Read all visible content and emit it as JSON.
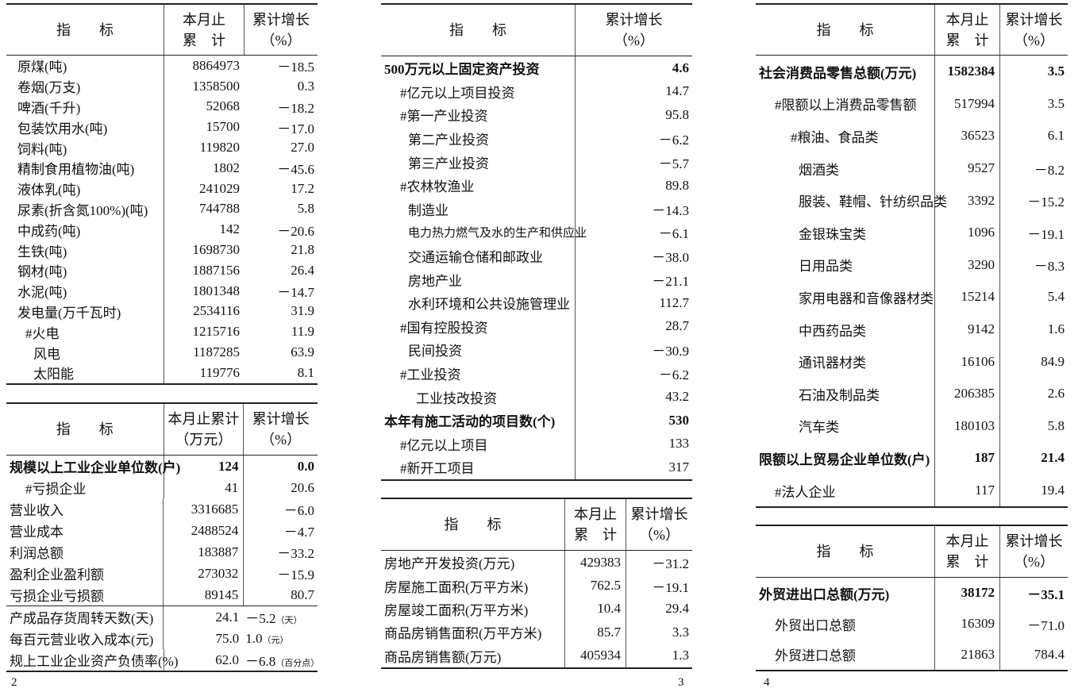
{
  "tables": [
    {
      "id": "industrial-output",
      "header": [
        "指　　标",
        "本月止\n累　计",
        "累计增长\n（%）"
      ],
      "rows": [
        {
          "label": "原煤(吨)",
          "indent": 1,
          "v1": "8864973",
          "v2": "－18.5"
        },
        {
          "label": "卷烟(万支)",
          "indent": 1,
          "v1": "1358500",
          "v2": "0.3"
        },
        {
          "label": "啤酒(千升)",
          "indent": 1,
          "v1": "52068",
          "v2": "－18.2"
        },
        {
          "label": "包装饮用水(吨)",
          "indent": 1,
          "v1": "15700",
          "v2": "－17.0"
        },
        {
          "label": "饲料(吨)",
          "indent": 1,
          "v1": "119820",
          "v2": "27.0"
        },
        {
          "label": "精制食用植物油(吨)",
          "indent": 1,
          "v1": "1802",
          "v2": "－45.6"
        },
        {
          "label": "液体乳(吨)",
          "indent": 1,
          "v1": "241029",
          "v2": "17.2"
        },
        {
          "label": "尿素(折含氮100%)(吨)",
          "indent": 1,
          "v1": "744788",
          "v2": "5.8"
        },
        {
          "label": "中成药(吨)",
          "indent": 1,
          "v1": "142",
          "v2": "－20.6"
        },
        {
          "label": "生铁(吨)",
          "indent": 1,
          "v1": "1698730",
          "v2": "21.8"
        },
        {
          "label": "钢材(吨)",
          "indent": 1,
          "v1": "1887156",
          "v2": "26.4"
        },
        {
          "label": "水泥(吨)",
          "indent": 1,
          "v1": "1801348",
          "v2": "－14.7"
        },
        {
          "label": "发电量(万千瓦时)",
          "indent": 1,
          "v1": "2534116",
          "v2": "31.9"
        },
        {
          "label": "#火电",
          "indent": 2,
          "v1": "1215716",
          "v2": "11.9"
        },
        {
          "label": "风电",
          "indent": 3,
          "v1": "1187285",
          "v2": "63.9"
        },
        {
          "label": "太阳能",
          "indent": 3,
          "v1": "119776",
          "v2": "8.1"
        }
      ]
    },
    {
      "id": "industrial-enterprises",
      "header": [
        "指　　标",
        "本月止累计\n（万元）",
        "累计增长\n（%）"
      ],
      "rows": [
        {
          "label": "规模以上工业企业单位数(户)",
          "indent": 0,
          "bold": true,
          "v1": "124",
          "v2": "0.0"
        },
        {
          "label": "#亏损企业",
          "indent": 2,
          "v1": "41",
          "v2": "20.6"
        },
        {
          "label": "营业收入",
          "indent": 0,
          "v1": "3316685",
          "v2": "－6.0"
        },
        {
          "label": "营业成本",
          "indent": 0,
          "v1": "2488524",
          "v2": "－4.7"
        },
        {
          "label": "利润总额",
          "indent": 0,
          "v1": "183887",
          "v2": "－33.2"
        },
        {
          "label": "盈利企业盈利额",
          "indent": 0,
          "v1": "273032",
          "v2": "－15.9"
        },
        {
          "label": "亏损企业亏损额",
          "indent": 0,
          "v1": "89145",
          "v2": "80.7"
        },
        {
          "label": "产成品存货周转天数(天)",
          "indent": 0,
          "v1": "24.1",
          "v2": "－5.2",
          "unit": "（天）",
          "sep": true
        },
        {
          "label": "每百元营业收入成本(元)",
          "indent": 0,
          "v1": "75.0",
          "v2": "1.0",
          "unit": "（元）"
        },
        {
          "label": "规上工业企业资产负债率(%)",
          "indent": 0,
          "v1": "62.0",
          "v2": "－6.8",
          "unit": "（百分点）"
        }
      ]
    },
    {
      "id": "fixed-asset-investment",
      "header": [
        "指　　标",
        "累计增长\n（%）"
      ],
      "rows": [
        {
          "label": "500万元以上固定资产投资",
          "indent": 0,
          "bold": true,
          "v2": "4.6"
        },
        {
          "label": "#亿元以上项目投资",
          "indent": 2,
          "v2": "14.7"
        },
        {
          "label": "#第一产业投资",
          "indent": 2,
          "v2": "95.8"
        },
        {
          "label": "第二产业投资",
          "indent": 3,
          "v2": "－6.2"
        },
        {
          "label": "第三产业投资",
          "indent": 3,
          "v2": "－5.7"
        },
        {
          "label": "#农林牧渔业",
          "indent": 2,
          "v2": "89.8"
        },
        {
          "label": "制造业",
          "indent": 3,
          "v2": "－14.3"
        },
        {
          "label": "电力热力燃气及水的生产和供应业",
          "indent": 3,
          "v2": "－6.1",
          "small": true
        },
        {
          "label": "交通运输仓储和邮政业",
          "indent": 3,
          "v2": "－38.0"
        },
        {
          "label": "房地产业",
          "indent": 3,
          "v2": "－21.1"
        },
        {
          "label": "水利环境和公共设施管理业",
          "indent": 3,
          "v2": "112.7"
        },
        {
          "label": "#国有控股投资",
          "indent": 2,
          "v2": "28.7"
        },
        {
          "label": "民间投资",
          "indent": 3,
          "v2": "－30.9"
        },
        {
          "label": "#工业投资",
          "indent": 2,
          "v2": "－6.2"
        },
        {
          "label": "工业技改投资",
          "indent": 4,
          "v2": "43.2"
        },
        {
          "label": "本年有施工活动的项目数(个)",
          "indent": 0,
          "bold": true,
          "v2": "530"
        },
        {
          "label": "#亿元以上项目",
          "indent": 2,
          "v2": "133"
        },
        {
          "label": "#新开工项目",
          "indent": 2,
          "v2": "317"
        }
      ]
    },
    {
      "id": "real-estate",
      "header": [
        "指　　标",
        "本月止\n累　计",
        "累计增长\n（%）"
      ],
      "rows": [
        {
          "label": "房地产开发投资(万元)",
          "indent": 0,
          "v1": "429383",
          "v2": "－31.2"
        },
        {
          "label": "房屋施工面积(万平方米)",
          "indent": 0,
          "v1": "762.5",
          "v2": "－19.1"
        },
        {
          "label": "房屋竣工面积(万平方米)",
          "indent": 0,
          "v1": "10.4",
          "v2": "29.4"
        },
        {
          "label": "商品房销售面积(万平方米)",
          "indent": 0,
          "v1": "85.7",
          "v2": "3.3"
        },
        {
          "label": "商品房销售额(万元)",
          "indent": 0,
          "v1": "405934",
          "v2": "1.3"
        }
      ]
    },
    {
      "id": "retail-sales",
      "header": [
        "指　　标",
        "本月止\n累　计",
        "累计增长\n（%）"
      ],
      "rows": [
        {
          "label": "社会消费品零售总额(万元)",
          "indent": 0,
          "bold": true,
          "v1": "1582384",
          "v2": "3.5"
        },
        {
          "label": "#限额以上消费品零售额",
          "indent": 2,
          "v1": "517994",
          "v2": "3.5"
        },
        {
          "label": "#粮油、食品类",
          "indent": 4,
          "v1": "36523",
          "v2": "6.1"
        },
        {
          "label": "烟酒类",
          "indent": 5,
          "v1": "9527",
          "v2": "－8.2"
        },
        {
          "label": "服装、鞋帽、针纺织品类",
          "indent": 5,
          "v1": "3392",
          "v2": "－15.2"
        },
        {
          "label": "金银珠宝类",
          "indent": 5,
          "v1": "1096",
          "v2": "－19.1"
        },
        {
          "label": "日用品类",
          "indent": 5,
          "v1": "3290",
          "v2": "－8.3"
        },
        {
          "label": "家用电器和音像器材类",
          "indent": 5,
          "v1": "15214",
          "v2": "5.4"
        },
        {
          "label": "中西药品类",
          "indent": 5,
          "v1": "9142",
          "v2": "1.6"
        },
        {
          "label": "通讯器材类",
          "indent": 5,
          "v1": "16106",
          "v2": "84.9"
        },
        {
          "label": "石油及制品类",
          "indent": 5,
          "v1": "206385",
          "v2": "2.6"
        },
        {
          "label": "汽车类",
          "indent": 5,
          "v1": "180103",
          "v2": "5.8"
        },
        {
          "label": "限额以上贸易企业单位数(户)",
          "indent": 0,
          "bold": true,
          "v1": "187",
          "v2": "21.4"
        },
        {
          "label": "#法人企业",
          "indent": 2,
          "v1": "117",
          "v2": "19.4"
        }
      ]
    },
    {
      "id": "foreign-trade",
      "header": [
        "指　　标",
        "本月止\n累　计",
        "累计增长\n（%）"
      ],
      "rows": [
        {
          "label": "外贸进出口总额(万元)",
          "indent": 0,
          "bold": true,
          "v1": "38172",
          "v2": "－35.1"
        },
        {
          "label": "外贸出口总额",
          "indent": 2,
          "v1": "16309",
          "v2": "－71.0"
        },
        {
          "label": "外贸进口总额",
          "indent": 2,
          "v1": "21863",
          "v2": "784.4"
        }
      ]
    }
  ],
  "page_numbers": [
    "2",
    "3",
    "4"
  ]
}
